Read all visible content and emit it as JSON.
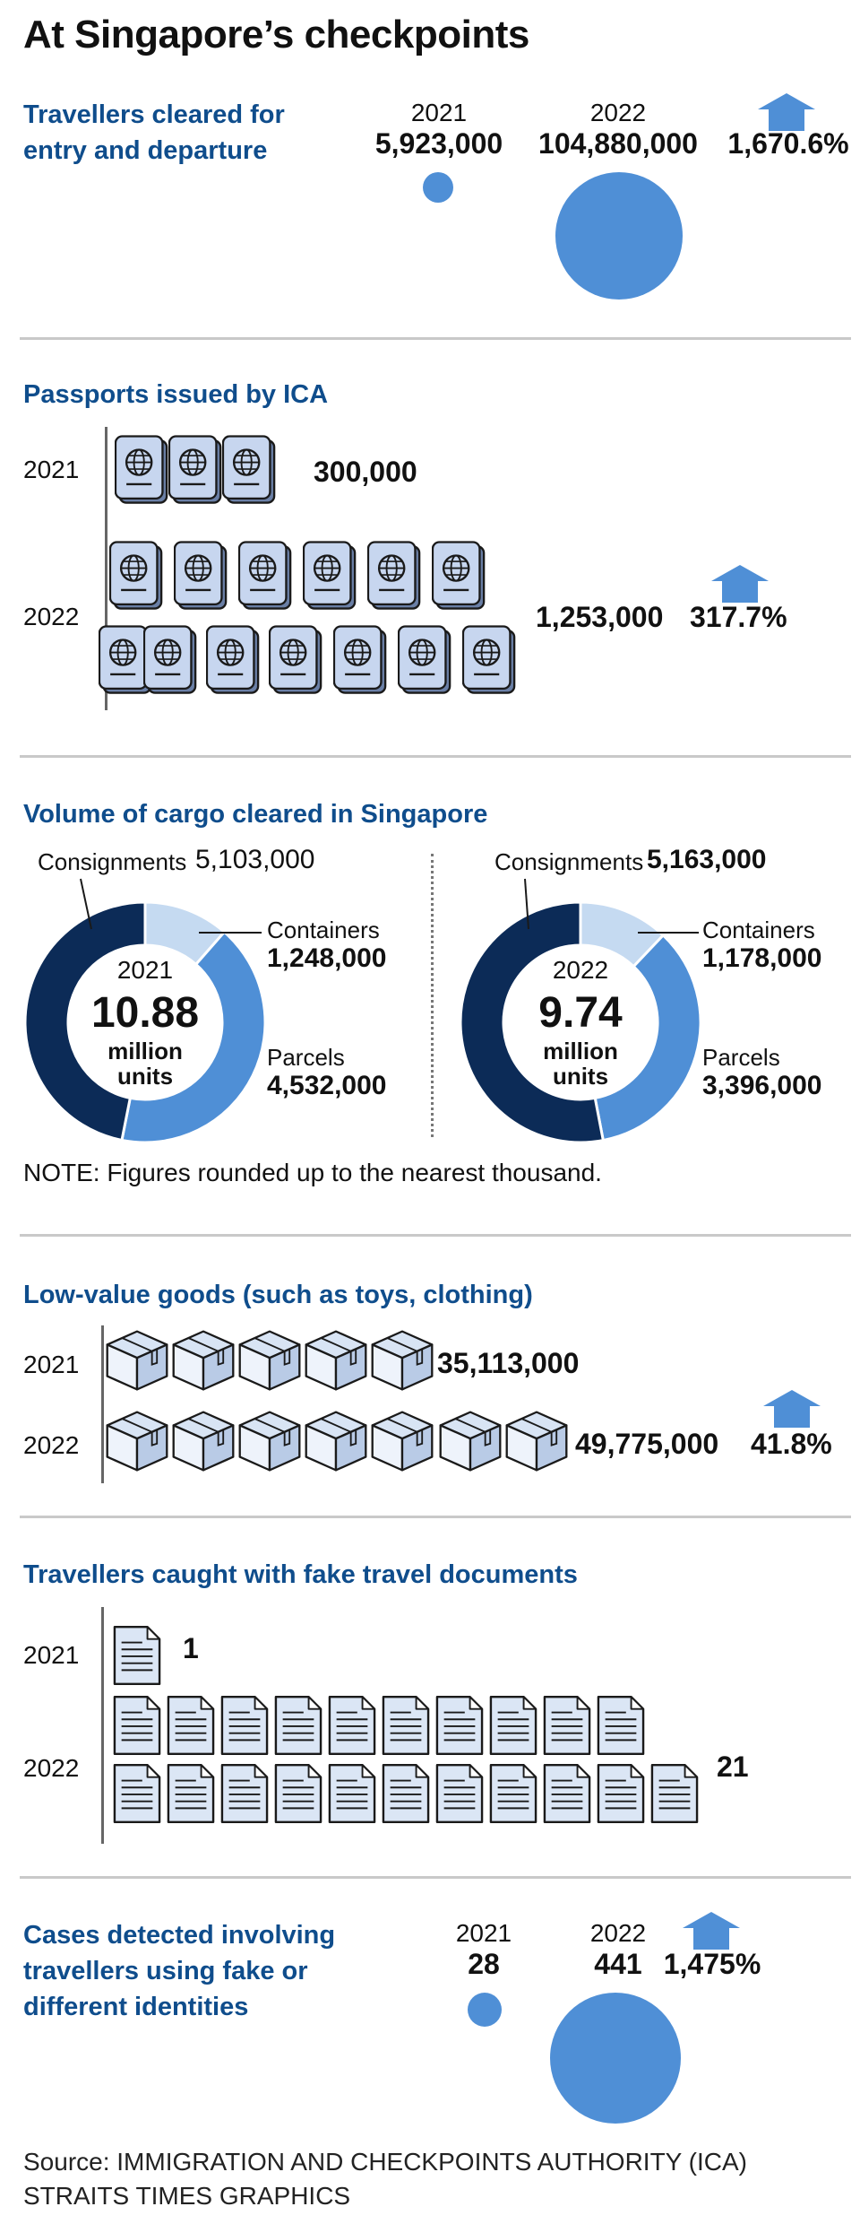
{
  "title": "At Singapore’s checkpoints",
  "accent_color": "#0f4d8c",
  "circle_color": "#4f8fd6",
  "travellers": {
    "heading_line1": "Travellers cleared for",
    "heading_line2": "entry and departure",
    "year1": "2021",
    "value1": "5,923,000",
    "year2": "2022",
    "value2": "104,880,000",
    "change": "1,670.6%",
    "change_icon": "up-arrow-icon"
  },
  "passports": {
    "heading": "Passports issued by ICA",
    "year1": "2021",
    "value1": "300,000",
    "year2": "2022",
    "value2": "1,253,000",
    "change": "317.7%",
    "icon": "passport-icon"
  },
  "cargo": {
    "heading": "Volume of cargo cleared in Singapore",
    "colors": {
      "consignments": "#0c2b57",
      "containers": "#c5daf1",
      "parcels": "#4f8fd6"
    },
    "y2021": {
      "year": "2021",
      "total": "10.88",
      "unit_line1": "million",
      "unit_line2": "units",
      "consignments_label": "Consignments",
      "consignments_value": "5,103,000",
      "containers_label": "Containers",
      "containers_value": "1,248,000",
      "parcels_label": "Parcels",
      "parcels_value": "4,532,000",
      "shares": [
        5103000,
        1248000,
        4532000
      ]
    },
    "y2022": {
      "year": "2022",
      "total": "9.74",
      "unit_line1": "million",
      "unit_line2": "units",
      "consignments_label": "Consignments",
      "consignments_value": "5,163,000",
      "containers_label": "Containers",
      "containers_value": "1,178,000",
      "parcels_label": "Parcels",
      "parcels_value": "3,396,000",
      "shares": [
        5163000,
        1178000,
        3396000
      ]
    },
    "note": "NOTE: Figures rounded up to the nearest thousand."
  },
  "lowvalue": {
    "heading": "Low-value goods (such as toys, clothing)",
    "year1": "2021",
    "value1": "35,113,000",
    "year2": "2022",
    "value2": "49,775,000",
    "change": "41.8%",
    "icon": "box-icon"
  },
  "fakedocs": {
    "heading": "Travellers caught with fake travel documents",
    "year1": "2021",
    "value1": "1",
    "year2": "2022",
    "value2": "21",
    "icon": "document-icon"
  },
  "identities": {
    "heading_line1": "Cases detected involving",
    "heading_line2": "travellers using fake or",
    "heading_line3": "different identities",
    "year1": "2021",
    "value1": "28",
    "year2": "2022",
    "value2": "441",
    "change": "1,475%"
  },
  "source_line1": "Source: IMMIGRATION AND CHECKPOINTS AUTHORITY (ICA)",
  "source_line2": "STRAITS TIMES GRAPHICS"
}
